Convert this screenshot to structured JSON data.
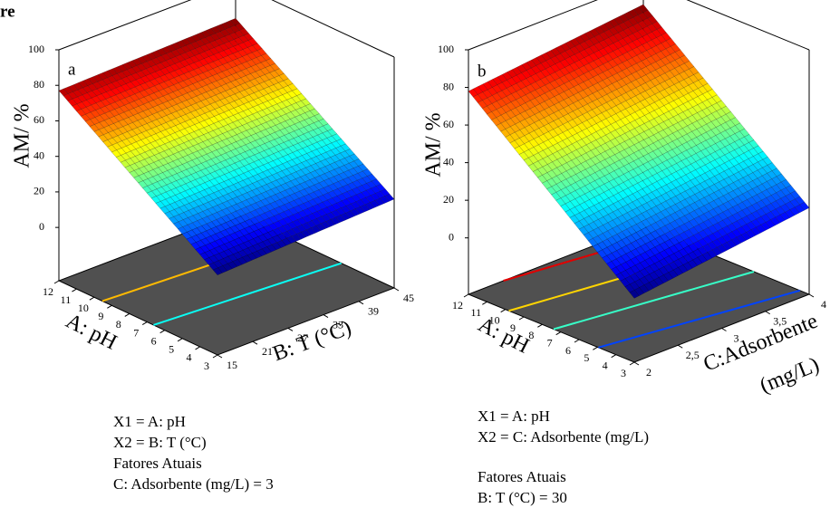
{
  "header": "re",
  "chart_data": [
    {
      "type": "surface3d",
      "panel": "a",
      "zlabel": "AM/ %",
      "xlabel": "A: pH",
      "ylabel": [
        "B: T (°C)"
      ],
      "xlim": [
        3,
        12
      ],
      "ylim": [
        15,
        45
      ],
      "zlim": [
        -30,
        100
      ],
      "xticks": [
        12,
        11,
        10,
        9,
        8,
        7,
        6,
        5,
        4,
        3
      ],
      "yticks": [
        15,
        21,
        27,
        33,
        39,
        45
      ],
      "zticks": [
        0,
        20,
        40,
        60,
        80,
        100
      ],
      "z": [
        [
          15,
          20
        ],
        [
          77,
          80
        ]
      ],
      "notes": [
        "X1 = A: pH",
        "X2 = B: T (°C)",
        "Fatores Atuais",
        "C: Adsorbente (mg/L) = 3"
      ]
    },
    {
      "type": "surface3d",
      "panel": "b",
      "zlabel": "AM/ %",
      "xlabel": "A: pH",
      "ylabel": [
        "C:Adsorbente",
        "(mg/L)"
      ],
      "xlim": [
        3,
        12
      ],
      "ylim": [
        2,
        4
      ],
      "zlim": [
        -30,
        100
      ],
      "xticks": [
        12,
        11,
        10,
        9,
        8,
        7,
        6,
        5,
        4,
        3
      ],
      "yticks": [
        2,
        {
          "value": 2.5,
          "label": "2,5"
        },
        3,
        {
          "value": 3.5,
          "label": "3,5"
        },
        4
      ],
      "zticks": [
        0,
        20,
        40,
        60,
        80,
        100
      ],
      "z": [
        [
          4,
          16
        ],
        [
          78,
          88
        ]
      ],
      "notes": [
        "X1 = A: pH",
        "X2 = C: Adsorbente (mg/L)",
        "Fatores Atuais",
        "B: T (°C) = 30"
      ]
    }
  ]
}
